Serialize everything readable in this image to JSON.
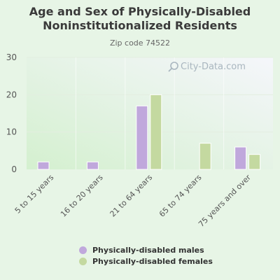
{
  "header": {
    "title": "Age and Sex of Physically-Disabled Noninstitutionalized Residents",
    "subtitle": "Zip code 74522"
  },
  "watermark": {
    "text": "City-Data.com",
    "icon": "magnifier-icon"
  },
  "legend": {
    "items": [
      {
        "label": "Physically-disabled males",
        "color": "#c0a8dc"
      },
      {
        "label": "Physically-disabled females",
        "color": "#c4d9a0"
      }
    ]
  },
  "chart_data": {
    "type": "bar",
    "title": "Age and Sex of Physically-Disabled Noninstitutionalized Residents",
    "subtitle": "Zip code 74522",
    "categories": [
      "5 to 15 years",
      "16 to 20 years",
      "21 to 64 years",
      "65 to 74 years",
      "75 years and over"
    ],
    "series": [
      {
        "name": "Physically-disabled males",
        "color": "#c0a8dc",
        "values": [
          2,
          2,
          17,
          0,
          6
        ]
      },
      {
        "name": "Physically-disabled females",
        "color": "#c4d9a0",
        "values": [
          0,
          0,
          20,
          7,
          4
        ]
      }
    ],
    "yticks": [
      0,
      10,
      20,
      30
    ],
    "ylim": [
      0,
      30
    ],
    "grid": true,
    "legend_position": "bottom"
  }
}
